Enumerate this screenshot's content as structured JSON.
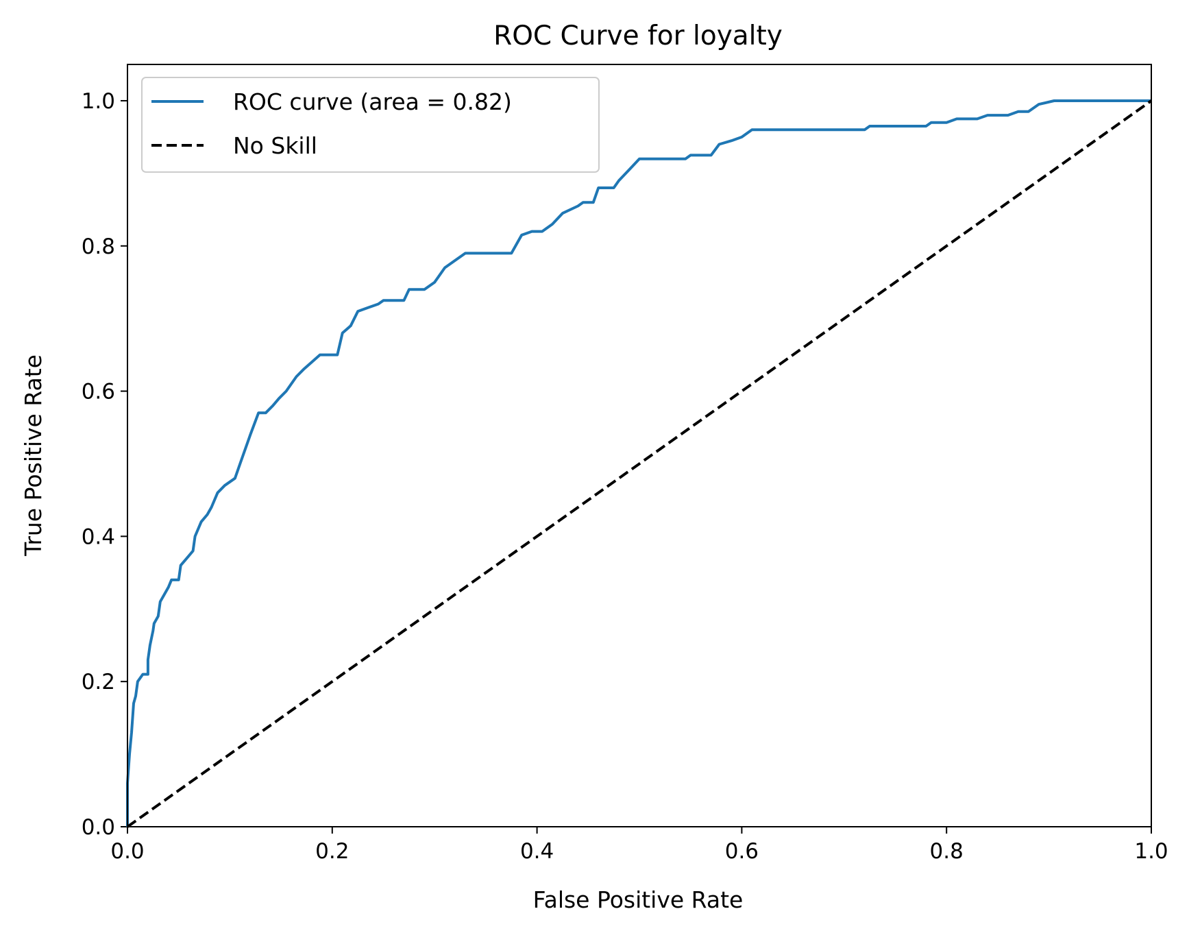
{
  "chart_data": {
    "type": "line",
    "title": "ROC Curve for loyalty",
    "xlabel": "False Positive Rate",
    "ylabel": "True Positive Rate",
    "xlim": [
      0.0,
      1.0
    ],
    "ylim": [
      0.0,
      1.05
    ],
    "xticks": [
      "0.0",
      "0.2",
      "0.4",
      "0.6",
      "0.8",
      "1.0"
    ],
    "yticks": [
      "0.0",
      "0.2",
      "0.4",
      "0.6",
      "0.8",
      "1.0"
    ],
    "legend_position": "upper-left",
    "series": [
      {
        "name": "ROC curve (area = 0.82)",
        "color": "#1f77b4",
        "style": "solid",
        "points": [
          [
            0.0,
            0.0
          ],
          [
            0.0,
            0.06
          ],
          [
            0.002,
            0.1
          ],
          [
            0.004,
            0.13
          ],
          [
            0.005,
            0.15
          ],
          [
            0.006,
            0.17
          ],
          [
            0.008,
            0.18
          ],
          [
            0.01,
            0.2
          ],
          [
            0.015,
            0.21
          ],
          [
            0.02,
            0.21
          ],
          [
            0.02,
            0.23
          ],
          [
            0.022,
            0.25
          ],
          [
            0.025,
            0.27
          ],
          [
            0.026,
            0.28
          ],
          [
            0.03,
            0.29
          ],
          [
            0.032,
            0.31
          ],
          [
            0.036,
            0.32
          ],
          [
            0.04,
            0.33
          ],
          [
            0.043,
            0.34
          ],
          [
            0.05,
            0.34
          ],
          [
            0.052,
            0.36
          ],
          [
            0.058,
            0.37
          ],
          [
            0.064,
            0.38
          ],
          [
            0.066,
            0.4
          ],
          [
            0.072,
            0.42
          ],
          [
            0.078,
            0.43
          ],
          [
            0.082,
            0.44
          ],
          [
            0.088,
            0.46
          ],
          [
            0.095,
            0.47
          ],
          [
            0.105,
            0.48
          ],
          [
            0.11,
            0.5
          ],
          [
            0.115,
            0.52
          ],
          [
            0.12,
            0.54
          ],
          [
            0.128,
            0.57
          ],
          [
            0.135,
            0.57
          ],
          [
            0.142,
            0.58
          ],
          [
            0.148,
            0.59
          ],
          [
            0.155,
            0.6
          ],
          [
            0.165,
            0.62
          ],
          [
            0.172,
            0.63
          ],
          [
            0.18,
            0.64
          ],
          [
            0.188,
            0.65
          ],
          [
            0.205,
            0.65
          ],
          [
            0.21,
            0.68
          ],
          [
            0.218,
            0.69
          ],
          [
            0.225,
            0.71
          ],
          [
            0.235,
            0.715
          ],
          [
            0.245,
            0.72
          ],
          [
            0.25,
            0.725
          ],
          [
            0.27,
            0.725
          ],
          [
            0.275,
            0.74
          ],
          [
            0.29,
            0.74
          ],
          [
            0.3,
            0.75
          ],
          [
            0.31,
            0.77
          ],
          [
            0.32,
            0.78
          ],
          [
            0.33,
            0.79
          ],
          [
            0.375,
            0.79
          ],
          [
            0.385,
            0.815
          ],
          [
            0.395,
            0.82
          ],
          [
            0.405,
            0.82
          ],
          [
            0.415,
            0.83
          ],
          [
            0.425,
            0.845
          ],
          [
            0.44,
            0.855
          ],
          [
            0.445,
            0.86
          ],
          [
            0.455,
            0.86
          ],
          [
            0.46,
            0.88
          ],
          [
            0.475,
            0.88
          ],
          [
            0.48,
            0.89
          ],
          [
            0.49,
            0.905
          ],
          [
            0.5,
            0.92
          ],
          [
            0.545,
            0.92
          ],
          [
            0.55,
            0.925
          ],
          [
            0.57,
            0.925
          ],
          [
            0.578,
            0.94
          ],
          [
            0.59,
            0.945
          ],
          [
            0.6,
            0.95
          ],
          [
            0.61,
            0.96
          ],
          [
            0.72,
            0.96
          ],
          [
            0.725,
            0.965
          ],
          [
            0.78,
            0.965
          ],
          [
            0.785,
            0.97
          ],
          [
            0.8,
            0.97
          ],
          [
            0.81,
            0.975
          ],
          [
            0.83,
            0.975
          ],
          [
            0.84,
            0.98
          ],
          [
            0.86,
            0.98
          ],
          [
            0.87,
            0.985
          ],
          [
            0.88,
            0.985
          ],
          [
            0.885,
            0.99
          ],
          [
            0.89,
            0.995
          ],
          [
            0.905,
            1.0
          ],
          [
            1.0,
            1.0
          ]
        ]
      },
      {
        "name": "No Skill",
        "color": "#000000",
        "style": "dashed",
        "points": [
          [
            0.0,
            0.0
          ],
          [
            1.0,
            1.0
          ]
        ]
      }
    ]
  }
}
